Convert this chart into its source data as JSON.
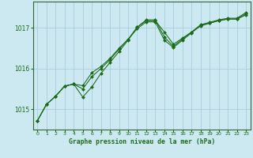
{
  "title": "Graphe pression niveau de la mer (hPa)",
  "background_color": "#cce8f0",
  "plot_bg_color": "#cce8f0",
  "grid_color": "#aaccdd",
  "line_color": "#1a6b1a",
  "marker_color": "#1a6b1a",
  "xlim": [
    -0.5,
    23.5
  ],
  "ylim": [
    1014.5,
    1017.65
  ],
  "xticks": [
    0,
    1,
    2,
    3,
    4,
    5,
    6,
    7,
    8,
    9,
    10,
    11,
    12,
    13,
    14,
    15,
    16,
    17,
    18,
    19,
    20,
    21,
    22,
    23
  ],
  "yticks": [
    1015,
    1016,
    1017
  ],
  "series1_x": [
    0,
    1,
    2,
    3,
    4,
    5,
    6,
    7,
    8,
    9,
    10,
    11,
    12,
    13,
    14,
    15,
    16,
    17,
    18,
    19,
    20,
    21,
    22,
    23
  ],
  "series1_y": [
    1014.72,
    1015.12,
    1015.32,
    1015.57,
    1015.62,
    1015.3,
    1015.55,
    1015.88,
    1016.15,
    1016.42,
    1016.7,
    1017.02,
    1017.18,
    1017.18,
    1016.9,
    1016.6,
    1016.75,
    1016.9,
    1017.05,
    1017.12,
    1017.18,
    1017.22,
    1017.22,
    1017.35
  ],
  "series2_x": [
    0,
    1,
    2,
    3,
    4,
    5,
    6,
    7,
    8,
    9,
    10,
    11,
    12,
    13,
    14,
    15,
    16,
    17,
    18,
    19,
    20,
    21,
    22,
    23
  ],
  "series2_y": [
    1014.72,
    1015.12,
    1015.32,
    1015.57,
    1015.62,
    1015.5,
    1015.8,
    1016.0,
    1016.22,
    1016.48,
    1016.72,
    1017.02,
    1017.2,
    1017.2,
    1016.78,
    1016.55,
    1016.73,
    1016.9,
    1017.08,
    1017.14,
    1017.2,
    1017.24,
    1017.24,
    1017.38
  ],
  "series3_x": [
    0,
    1,
    2,
    3,
    4,
    5,
    6,
    7,
    8,
    9,
    10,
    11,
    12,
    13,
    14,
    15,
    16,
    17,
    18,
    19,
    20,
    21,
    22,
    23
  ],
  "series3_y": [
    1014.72,
    1015.12,
    1015.32,
    1015.57,
    1015.62,
    1015.58,
    1015.9,
    1016.05,
    1016.25,
    1016.5,
    1016.72,
    1016.98,
    1017.15,
    1017.15,
    1016.7,
    1016.52,
    1016.7,
    1016.88,
    1017.06,
    1017.12,
    1017.18,
    1017.22,
    1017.22,
    1017.32
  ]
}
